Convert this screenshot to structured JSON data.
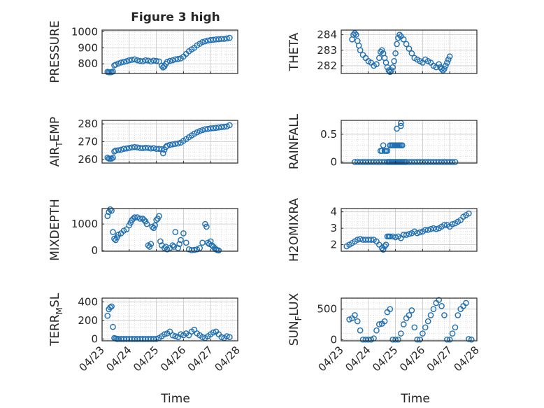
{
  "figure": {
    "title": "Figure 3 high",
    "marker_color": "#1f6fb2",
    "x_ticks": [
      "04/23",
      "04/24",
      "04/25",
      "04/26",
      "04/27",
      "04/28"
    ],
    "x_label": "Time"
  },
  "chart_data": [
    {
      "type": "scatter",
      "name": "PRESSURE",
      "ylabel": {
        "main": "PRESSURE",
        "sub": "",
        "tail": ""
      },
      "ylim": [
        740,
        1010
      ],
      "yticks": [
        800,
        900,
        1000
      ],
      "grid": true,
      "xlim": [
        0,
        5
      ],
      "x": [
        0.2,
        0.25,
        0.3,
        0.35,
        0.4,
        0.45,
        0.5,
        0.6,
        0.7,
        0.8,
        0.9,
        1.0,
        1.1,
        1.2,
        1.3,
        1.4,
        1.5,
        1.6,
        1.7,
        1.8,
        1.9,
        2.0,
        2.1,
        2.2,
        2.25,
        2.3,
        2.35,
        2.4,
        2.5,
        2.6,
        2.7,
        2.8,
        2.9,
        3.0,
        3.1,
        3.2,
        3.3,
        3.4,
        3.5,
        3.6,
        3.7,
        3.8,
        3.9,
        4.0,
        4.1,
        4.2,
        4.3,
        4.4,
        4.5,
        4.6,
        4.7
      ],
      "y": [
        750,
        748,
        748,
        749,
        752,
        790,
        795,
        802,
        808,
        812,
        816,
        822,
        825,
        828,
        822,
        818,
        816,
        822,
        820,
        815,
        820,
        818,
        815,
        788,
        778,
        785,
        800,
        812,
        818,
        822,
        828,
        830,
        834,
        845,
        862,
        878,
        890,
        900,
        915,
        925,
        935,
        940,
        945,
        948,
        950,
        952,
        953,
        955,
        955,
        958,
        962
      ]
    },
    {
      "type": "scatter",
      "name": "THETA",
      "ylabel": {
        "main": "THETA",
        "sub": "",
        "tail": ""
      },
      "ylim": [
        281.5,
        284.3
      ],
      "yticks": [
        282,
        283,
        284
      ],
      "grid": true,
      "xlim": [
        0,
        5
      ],
      "x": [
        0.4,
        0.45,
        0.5,
        0.55,
        0.6,
        0.65,
        0.7,
        0.8,
        0.9,
        1.0,
        1.1,
        1.2,
        1.3,
        1.4,
        1.45,
        1.5,
        1.55,
        1.6,
        1.65,
        1.7,
        1.75,
        1.8,
        1.85,
        1.9,
        1.95,
        2.0,
        2.05,
        2.1,
        2.15,
        2.2,
        2.3,
        2.4,
        2.5,
        2.6,
        2.7,
        2.8,
        2.9,
        3.0,
        3.1,
        3.2,
        3.3,
        3.4,
        3.5,
        3.6,
        3.65,
        3.7,
        3.75,
        3.8,
        3.85,
        3.9,
        3.95,
        4.0
      ],
      "y": [
        283.7,
        284.0,
        284.1,
        284.0,
        283.6,
        283.3,
        283.0,
        282.7,
        282.5,
        282.3,
        282.2,
        282.0,
        282.1,
        282.5,
        282.9,
        283.0,
        282.8,
        282.5,
        282.2,
        281.9,
        281.7,
        281.6,
        281.7,
        281.9,
        282.3,
        282.8,
        283.4,
        283.8,
        284.0,
        283.9,
        283.7,
        283.4,
        283.1,
        282.8,
        282.5,
        282.4,
        282.3,
        282.2,
        282.4,
        282.3,
        282.2,
        282.0,
        281.9,
        282.1,
        281.9,
        281.8,
        281.7,
        281.8,
        282.0,
        282.2,
        282.4,
        282.6
      ]
    },
    {
      "type": "scatter",
      "name": "AIR_TEMP",
      "ylabel": {
        "main": "AIR",
        "sub": "T",
        "tail": "EMP"
      },
      "ylim": [
        258,
        282
      ],
      "yticks": [
        260,
        270,
        280
      ],
      "grid": true,
      "xlim": [
        0,
        5
      ],
      "x": [
        0.2,
        0.25,
        0.3,
        0.35,
        0.4,
        0.45,
        0.5,
        0.6,
        0.7,
        0.8,
        0.9,
        1.0,
        1.1,
        1.2,
        1.3,
        1.4,
        1.5,
        1.6,
        1.7,
        1.8,
        1.9,
        2.0,
        2.1,
        2.2,
        2.25,
        2.3,
        2.35,
        2.4,
        2.5,
        2.6,
        2.7,
        2.8,
        2.9,
        3.0,
        3.1,
        3.2,
        3.3,
        3.4,
        3.5,
        3.6,
        3.7,
        3.8,
        3.9,
        4.0,
        4.1,
        4.2,
        4.3,
        4.4,
        4.5,
        4.6,
        4.7
      ],
      "y": [
        261,
        260.5,
        260.5,
        260.5,
        261,
        264.5,
        265,
        265.2,
        265.5,
        266,
        266.2,
        266.5,
        266.8,
        267,
        266.8,
        266.5,
        266.4,
        266.6,
        266.5,
        266.2,
        266.4,
        266,
        266,
        265.8,
        263.5,
        265.5,
        267,
        267.8,
        268.2,
        268.5,
        268.8,
        269,
        269.5,
        270.5,
        271.5,
        272.5,
        273.5,
        274.5,
        275.3,
        276,
        276.5,
        277,
        277.2,
        277.5,
        277.6,
        277.8,
        278,
        278.2,
        278.4,
        278.6,
        279.3
      ]
    },
    {
      "type": "scatter",
      "name": "RAINFALL",
      "ylabel": {
        "main": "RAINFALL",
        "sub": "",
        "tail": ""
      },
      "ylim": [
        -0.02,
        0.75
      ],
      "yticks": [
        0,
        0.5
      ],
      "grid": true,
      "xlim": [
        0,
        5
      ],
      "x": [
        0.5,
        0.6,
        0.7,
        0.8,
        0.9,
        1.0,
        1.1,
        1.2,
        1.3,
        1.4,
        1.5,
        1.6,
        1.7,
        1.75,
        1.8,
        1.85,
        1.9,
        1.95,
        2.0,
        2.05,
        2.1,
        2.15,
        2.2,
        2.25,
        2.3,
        2.35,
        2.4,
        2.5,
        2.6,
        2.7,
        2.8,
        2.9,
        3.0,
        3.1,
        3.2,
        3.3,
        3.4,
        3.5,
        3.6,
        3.7,
        3.8,
        3.9,
        4.0,
        4.1,
        4.2,
        1.45,
        1.5,
        1.55,
        1.6,
        1.65,
        1.7,
        1.8,
        1.85,
        1.9,
        1.95,
        2.0,
        2.05,
        2.1,
        2.15,
        2.2,
        2.25,
        2.05,
        2.2,
        2.2
      ],
      "y": [
        0,
        0,
        0,
        0,
        0,
        0,
        0,
        0,
        0,
        0,
        0,
        0,
        0,
        0,
        0,
        0,
        0,
        0,
        0,
        0,
        0,
        0,
        0,
        0,
        0,
        0,
        0,
        0,
        0,
        0,
        0,
        0,
        0,
        0,
        0,
        0,
        0,
        0,
        0,
        0,
        0,
        0,
        0,
        0,
        0,
        0.2,
        0.2,
        0.3,
        0.2,
        0.2,
        0.2,
        0.3,
        0.3,
        0.3,
        0.3,
        0.3,
        0.3,
        0.3,
        0.3,
        0.3,
        0.3,
        0.6,
        0.7,
        0.65
      ]
    },
    {
      "type": "scatter",
      "name": "MIXDEPTH",
      "ylabel": {
        "main": "MIXDEPTH",
        "sub": "",
        "tail": ""
      },
      "ylim": [
        -20,
        1580
      ],
      "yticks": [
        0,
        1000
      ],
      "grid": true,
      "xlim": [
        0,
        5
      ],
      "x": [
        0.2,
        0.25,
        0.3,
        0.35,
        0.4,
        0.45,
        0.5,
        0.55,
        0.6,
        0.7,
        0.8,
        0.9,
        1.0,
        1.05,
        1.1,
        1.15,
        1.2,
        1.3,
        1.4,
        1.5,
        1.55,
        1.6,
        1.65,
        1.7,
        1.75,
        1.8,
        1.85,
        1.9,
        1.95,
        2.0,
        2.05,
        2.1,
        2.15,
        2.2,
        2.3,
        2.35,
        2.4,
        2.5,
        2.6,
        2.65,
        2.7,
        2.8,
        2.85,
        2.9,
        3.0,
        3.1,
        3.2,
        3.3,
        3.4,
        3.5,
        3.6,
        3.7,
        3.8,
        3.85,
        3.9,
        3.95,
        4.0,
        4.05,
        4.1,
        4.15,
        4.2,
        4.25,
        4.3
      ],
      "y": [
        1300,
        1450,
        1550,
        1500,
        700,
        450,
        400,
        500,
        600,
        650,
        750,
        800,
        950,
        1050,
        1150,
        1200,
        1250,
        1250,
        1200,
        1200,
        1150,
        1100,
        1000,
        200,
        150,
        250,
        900,
        850,
        950,
        1150,
        1200,
        1300,
        350,
        200,
        100,
        150,
        50,
        100,
        200,
        150,
        700,
        100,
        250,
        400,
        650,
        300,
        50,
        20,
        30,
        50,
        100,
        300,
        1000,
        900,
        300,
        250,
        350,
        200,
        150,
        100,
        50,
        20,
        10
      ]
    },
    {
      "type": "scatter",
      "name": "H2OMIXRA",
      "ylabel": {
        "main": "H2OMIXRA",
        "sub": "",
        "tail": ""
      },
      "ylim": [
        1.6,
        4.2
      ],
      "yticks": [
        2,
        3,
        4
      ],
      "grid": true,
      "xlim": [
        0,
        5
      ],
      "x": [
        0.2,
        0.3,
        0.4,
        0.5,
        0.6,
        0.7,
        0.8,
        0.9,
        1.0,
        1.1,
        1.2,
        1.3,
        1.4,
        1.5,
        1.55,
        1.6,
        1.65,
        1.7,
        1.75,
        1.8,
        1.9,
        2.0,
        2.1,
        2.2,
        2.3,
        2.4,
        2.5,
        2.6,
        2.7,
        2.8,
        2.9,
        3.0,
        3.1,
        3.2,
        3.3,
        3.4,
        3.5,
        3.6,
        3.7,
        3.8,
        3.9,
        4.0,
        4.1,
        4.2,
        4.3,
        4.4,
        4.5,
        4.6,
        4.7
      ],
      "y": [
        1.9,
        2.0,
        2.1,
        2.2,
        2.3,
        2.35,
        2.3,
        2.3,
        2.3,
        2.3,
        2.3,
        2.2,
        2.0,
        1.8,
        1.7,
        1.9,
        2.0,
        2.5,
        2.5,
        2.5,
        2.5,
        2.45,
        2.5,
        2.4,
        2.6,
        2.6,
        2.65,
        2.7,
        2.8,
        2.7,
        2.75,
        2.8,
        2.9,
        2.9,
        2.95,
        3.0,
        2.95,
        3.0,
        3.1,
        3.2,
        3.2,
        3.1,
        3.25,
        3.3,
        3.4,
        3.5,
        3.7,
        3.8,
        3.9
      ]
    },
    {
      "type": "scatter",
      "name": "TERR_MSL",
      "ylabel": {
        "main": "TERR",
        "sub": "M",
        "tail": "SL"
      },
      "ylim": [
        -20,
        440
      ],
      "yticks": [
        0,
        200,
        400
      ],
      "grid": true,
      "xlim": [
        0,
        5
      ],
      "x": [
        0.2,
        0.25,
        0.3,
        0.35,
        0.4,
        0.45,
        0.5,
        0.55,
        0.6,
        0.7,
        0.8,
        0.9,
        1.0,
        1.1,
        1.2,
        1.3,
        1.4,
        1.5,
        1.6,
        1.7,
        1.8,
        1.9,
        2.0,
        2.1,
        2.2,
        2.3,
        2.4,
        2.5,
        2.6,
        2.7,
        2.8,
        2.9,
        3.0,
        3.1,
        3.2,
        3.3,
        3.4,
        3.5,
        3.6,
        3.7,
        3.8,
        3.9,
        4.0,
        4.1,
        4.2,
        4.3,
        4.4,
        4.5,
        4.6,
        4.7
      ],
      "y": [
        250,
        320,
        340,
        350,
        130,
        10,
        5,
        0,
        0,
        0,
        0,
        0,
        0,
        0,
        0,
        0,
        0,
        0,
        0,
        0,
        0,
        0,
        0,
        10,
        30,
        50,
        60,
        80,
        40,
        30,
        20,
        50,
        40,
        60,
        40,
        80,
        100,
        60,
        40,
        20,
        10,
        30,
        50,
        70,
        80,
        50,
        20,
        10,
        30,
        20
      ]
    },
    {
      "type": "scatter",
      "name": "SUN_FLUX",
      "ylabel": {
        "main": "SUN",
        "sub": "F",
        "tail": "LUX"
      },
      "ylim": [
        -20,
        680
      ],
      "yticks": [
        0,
        500
      ],
      "grid": true,
      "xlim": [
        0,
        5
      ],
      "x": [
        0.3,
        0.4,
        0.5,
        0.6,
        0.7,
        0.8,
        0.9,
        1.0,
        1.1,
        1.2,
        1.3,
        1.4,
        1.5,
        1.6,
        1.7,
        1.8,
        1.9,
        2.0,
        2.1,
        2.2,
        2.3,
        2.4,
        2.5,
        2.6,
        2.7,
        2.8,
        2.9,
        3.0,
        3.1,
        3.2,
        3.3,
        3.4,
        3.5,
        3.6,
        3.7,
        3.8,
        3.9,
        4.0,
        4.1,
        4.2,
        4.3,
        4.4,
        4.5,
        4.6,
        4.7,
        4.8
      ],
      "y": [
        330,
        350,
        400,
        300,
        150,
        0,
        0,
        0,
        0,
        20,
        150,
        250,
        260,
        300,
        450,
        500,
        0,
        0,
        0,
        100,
        250,
        350,
        400,
        480,
        200,
        0,
        0,
        100,
        200,
        300,
        400,
        500,
        600,
        650,
        550,
        400,
        0,
        0,
        100,
        200,
        400,
        500,
        550,
        600,
        10,
        0
      ]
    }
  ]
}
